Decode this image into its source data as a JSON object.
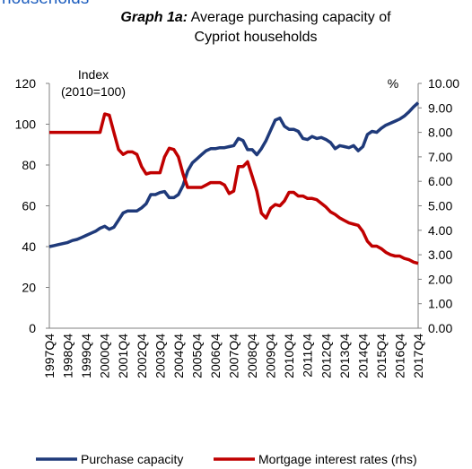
{
  "page_heading": "households",
  "chart_data": {
    "type": "line",
    "title_label": "Graph 1a:",
    "title_lines": [
      "Average purchasing capacity of",
      "Cypriot households"
    ],
    "y_label_lines": [
      "Index",
      "(2010=100)"
    ],
    "y2_label": "%",
    "categories": [
      "1997Q4",
      null,
      null,
      null,
      "1998Q4",
      null,
      null,
      null,
      "1999Q4",
      null,
      null,
      null,
      "2000Q4",
      null,
      null,
      null,
      "2001Q4",
      null,
      null,
      null,
      "2002Q4",
      null,
      null,
      null,
      "2003Q4",
      null,
      null,
      null,
      "2004Q4",
      null,
      null,
      null,
      "2005Q4",
      null,
      null,
      null,
      "2006Q4",
      null,
      null,
      null,
      "2007Q4",
      null,
      null,
      null,
      "2008Q4",
      null,
      null,
      null,
      "2009Q4",
      null,
      null,
      null,
      "2010Q4",
      null,
      null,
      null,
      "2011Q4",
      null,
      null,
      null,
      "2012Q4",
      null,
      null,
      null,
      "2013Q4",
      null,
      null,
      null,
      "2014Q4",
      null,
      null,
      null,
      "2015Q4",
      null,
      null,
      null,
      "2016Q4",
      null,
      null,
      null,
      "2017Q4"
    ],
    "series": [
      {
        "name": "Purchase capacity",
        "color": "#1f3a7a",
        "axis": "y",
        "values": [
          40,
          40.5,
          41,
          41.5,
          42,
          43,
          43.5,
          44.5,
          45.5,
          46.5,
          47.5,
          49,
          50,
          48.5,
          49.5,
          53,
          56.5,
          57.5,
          57.5,
          57.5,
          59,
          61,
          65.5,
          65.5,
          66.5,
          67,
          64,
          64,
          65.5,
          70,
          77,
          81,
          83,
          85,
          87,
          88,
          88,
          88.5,
          88.5,
          89,
          89.5,
          93,
          92,
          87.5,
          87.5,
          85,
          88,
          92,
          97,
          102,
          103,
          99,
          97.5,
          97.5,
          96.5,
          93,
          92.5,
          94,
          93,
          93.5,
          92.5,
          91,
          88,
          89.5,
          89,
          88.5,
          89.5,
          87,
          89,
          95,
          96.5,
          96,
          98,
          99.5,
          100.5,
          101.5,
          102.5,
          104,
          106,
          108.5,
          110.5
        ]
      },
      {
        "name": "Mortgage interest rates (rhs)",
        "color": "#c00000",
        "axis": "y2",
        "values": [
          8,
          8,
          8,
          8,
          8,
          8,
          8,
          8,
          8,
          8,
          8,
          8,
          8.75,
          8.7,
          8,
          7.3,
          7.1,
          7.2,
          7.2,
          7.1,
          6.6,
          6.3,
          6.35,
          6.35,
          6.35,
          7,
          7.35,
          7.3,
          7,
          6.3,
          5.75,
          5.75,
          5.75,
          5.75,
          5.85,
          5.95,
          5.95,
          5.95,
          5.85,
          5.5,
          5.6,
          6.6,
          6.6,
          6.8,
          6.2,
          5.6,
          4.7,
          4.5,
          4.9,
          5.05,
          5,
          5.2,
          5.55,
          5.55,
          5.4,
          5.4,
          5.3,
          5.3,
          5.25,
          5.1,
          4.95,
          4.75,
          4.65,
          4.5,
          4.4,
          4.3,
          4.25,
          4.2,
          3.95,
          3.55,
          3.35,
          3.35,
          3.25,
          3.1,
          3,
          2.95,
          2.95,
          2.85,
          2.8,
          2.7,
          2.65
        ]
      }
    ],
    "ylim": [
      0,
      120
    ],
    "yticks": [
      0,
      20,
      40,
      60,
      80,
      100,
      120
    ],
    "y2lim": [
      0,
      10
    ],
    "y2ticks": [
      {
        "value": 0,
        "label": "0.00"
      },
      {
        "value": 1,
        "label": "1.00"
      },
      {
        "value": 2,
        "label": "2.00"
      },
      {
        "value": 3,
        "label": "3.00"
      },
      {
        "value": 4,
        "label": "4.00"
      },
      {
        "value": 5,
        "label": "5.00"
      },
      {
        "value": 6,
        "label": "6.00"
      },
      {
        "value": 7,
        "label": "7.00"
      },
      {
        "value": 8,
        "label": "8.00"
      },
      {
        "value": 9,
        "label": "9.00"
      },
      {
        "value": 10,
        "label": "10.00"
      }
    ],
    "grid": false,
    "legend": "bottom"
  }
}
